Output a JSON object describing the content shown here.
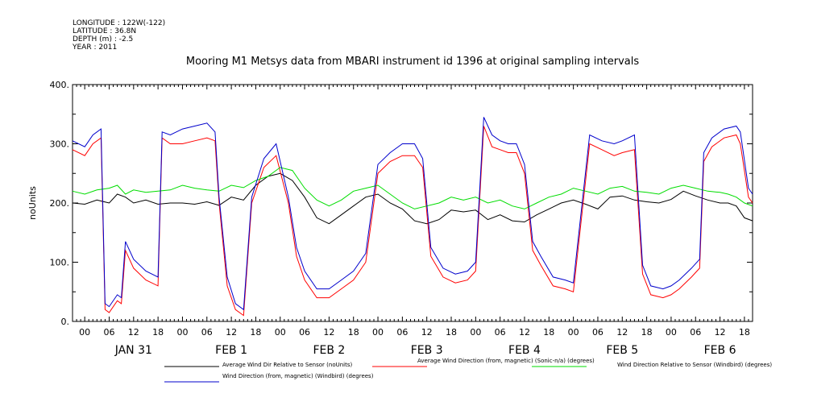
{
  "metadata": {
    "longitude": "LONGITUDE : 122W(-122)",
    "latitude": "LATITUDE : 36.8N",
    "depth": "DEPTH (m) : -2.5",
    "year": "YEAR : 2011"
  },
  "chart_data": {
    "type": "line",
    "title": "Mooring M1 Metsys data from MBARI instrument id 1396 at original sampling intervals",
    "ylabel": "noUnits",
    "xlabel": "",
    "ylim": [
      0,
      400
    ],
    "yticks": [
      "0.",
      "100.",
      "200.",
      "300.",
      "400."
    ],
    "hour_ticks": [
      "00",
      "06",
      "12",
      "18",
      "00",
      "06",
      "12",
      "18",
      "00",
      "06",
      "12",
      "18",
      "00",
      "06",
      "12",
      "18",
      "00",
      "06",
      "12",
      "18",
      "00",
      "06",
      "12",
      "18",
      "00",
      "06",
      "12",
      "18"
    ],
    "day_labels": [
      "JAN 31",
      "FEB 1",
      "FEB 2",
      "FEB 3",
      "FEB 4",
      "FEB 5",
      "FEB 6"
    ],
    "x_range_hours": [
      -3,
      164
    ],
    "grid": false,
    "legend_placement": "bottom",
    "series": [
      {
        "name": "Average Wind Dir Relative to Sensor (noUnits)",
        "color": "#000000",
        "points": [
          [
            -3,
            200
          ],
          [
            0,
            198
          ],
          [
            3,
            205
          ],
          [
            6,
            200
          ],
          [
            8,
            215
          ],
          [
            10,
            210
          ],
          [
            12,
            200
          ],
          [
            15,
            205
          ],
          [
            18,
            198
          ],
          [
            21,
            200
          ],
          [
            24,
            200
          ],
          [
            27,
            198
          ],
          [
            30,
            202
          ],
          [
            33,
            196
          ],
          [
            36,
            210
          ],
          [
            39,
            205
          ],
          [
            42,
            230
          ],
          [
            45,
            245
          ],
          [
            48,
            250
          ],
          [
            51,
            238
          ],
          [
            54,
            210
          ],
          [
            57,
            175
          ],
          [
            60,
            165
          ],
          [
            63,
            180
          ],
          [
            66,
            195
          ],
          [
            69,
            210
          ],
          [
            72,
            215
          ],
          [
            75,
            200
          ],
          [
            78,
            190
          ],
          [
            81,
            170
          ],
          [
            84,
            165
          ],
          [
            87,
            172
          ],
          [
            90,
            188
          ],
          [
            93,
            185
          ],
          [
            96,
            188
          ],
          [
            99,
            172
          ],
          [
            102,
            180
          ],
          [
            105,
            170
          ],
          [
            108,
            168
          ],
          [
            111,
            180
          ],
          [
            114,
            190
          ],
          [
            117,
            200
          ],
          [
            120,
            205
          ],
          [
            123,
            198
          ],
          [
            126,
            190
          ],
          [
            129,
            210
          ],
          [
            132,
            212
          ],
          [
            135,
            205
          ],
          [
            138,
            202
          ],
          [
            141,
            200
          ],
          [
            144,
            206
          ],
          [
            147,
            220
          ],
          [
            150,
            212
          ],
          [
            153,
            205
          ],
          [
            156,
            200
          ],
          [
            158,
            200
          ],
          [
            160,
            195
          ],
          [
            162,
            175
          ],
          [
            164,
            170
          ]
        ]
      },
      {
        "name": "Average Wind Direction (from, magnetic) (Sonic-n/a) (degrees)",
        "color": "#ff0000",
        "points": [
          [
            -3,
            290
          ],
          [
            0,
            280
          ],
          [
            2,
            300
          ],
          [
            4,
            310
          ],
          [
            5,
            20
          ],
          [
            6,
            15
          ],
          [
            8,
            35
          ],
          [
            9,
            30
          ],
          [
            10,
            120
          ],
          [
            12,
            90
          ],
          [
            15,
            70
          ],
          [
            18,
            60
          ],
          [
            19,
            310
          ],
          [
            21,
            300
          ],
          [
            24,
            300
          ],
          [
            27,
            305
          ],
          [
            30,
            310
          ],
          [
            32,
            305
          ],
          [
            33,
            200
          ],
          [
            35,
            60
          ],
          [
            37,
            20
          ],
          [
            39,
            10
          ],
          [
            41,
            200
          ],
          [
            44,
            260
          ],
          [
            47,
            280
          ],
          [
            50,
            200
          ],
          [
            52,
            110
          ],
          [
            54,
            70
          ],
          [
            57,
            40
          ],
          [
            60,
            40
          ],
          [
            63,
            55
          ],
          [
            66,
            70
          ],
          [
            69,
            100
          ],
          [
            72,
            250
          ],
          [
            75,
            270
          ],
          [
            78,
            280
          ],
          [
            81,
            280
          ],
          [
            83,
            260
          ],
          [
            85,
            110
          ],
          [
            88,
            75
          ],
          [
            91,
            65
          ],
          [
            94,
            70
          ],
          [
            96,
            85
          ],
          [
            98,
            330
          ],
          [
            100,
            295
          ],
          [
            102,
            290
          ],
          [
            104,
            285
          ],
          [
            106,
            285
          ],
          [
            108,
            250
          ],
          [
            110,
            120
          ],
          [
            112,
            95
          ],
          [
            115,
            60
          ],
          [
            118,
            55
          ],
          [
            120,
            50
          ],
          [
            124,
            300
          ],
          [
            127,
            290
          ],
          [
            130,
            280
          ],
          [
            132,
            285
          ],
          [
            135,
            290
          ],
          [
            137,
            80
          ],
          [
            139,
            45
          ],
          [
            142,
            40
          ],
          [
            144,
            45
          ],
          [
            146,
            55
          ],
          [
            149,
            75
          ],
          [
            151,
            90
          ],
          [
            152,
            270
          ],
          [
            154,
            295
          ],
          [
            157,
            310
          ],
          [
            160,
            315
          ],
          [
            161,
            300
          ],
          [
            163,
            210
          ],
          [
            164,
            200
          ]
        ]
      },
      {
        "name": "Wind Direction Relative to Sensor (Windbird) (degrees)",
        "color": "#00dd00",
        "points": [
          [
            -3,
            220
          ],
          [
            0,
            215
          ],
          [
            3,
            222
          ],
          [
            6,
            225
          ],
          [
            8,
            230
          ],
          [
            10,
            215
          ],
          [
            12,
            222
          ],
          [
            15,
            218
          ],
          [
            18,
            220
          ],
          [
            21,
            222
          ],
          [
            24,
            230
          ],
          [
            27,
            225
          ],
          [
            30,
            222
          ],
          [
            33,
            220
          ],
          [
            36,
            230
          ],
          [
            39,
            226
          ],
          [
            42,
            238
          ],
          [
            45,
            245
          ],
          [
            48,
            260
          ],
          [
            51,
            255
          ],
          [
            54,
            225
          ],
          [
            57,
            205
          ],
          [
            60,
            195
          ],
          [
            63,
            205
          ],
          [
            66,
            220
          ],
          [
            69,
            225
          ],
          [
            72,
            230
          ],
          [
            75,
            215
          ],
          [
            78,
            200
          ],
          [
            81,
            190
          ],
          [
            84,
            195
          ],
          [
            87,
            200
          ],
          [
            90,
            210
          ],
          [
            93,
            205
          ],
          [
            96,
            210
          ],
          [
            99,
            200
          ],
          [
            102,
            205
          ],
          [
            105,
            195
          ],
          [
            108,
            190
          ],
          [
            111,
            200
          ],
          [
            114,
            210
          ],
          [
            117,
            215
          ],
          [
            120,
            225
          ],
          [
            123,
            220
          ],
          [
            126,
            215
          ],
          [
            129,
            225
          ],
          [
            132,
            228
          ],
          [
            135,
            220
          ],
          [
            138,
            218
          ],
          [
            141,
            215
          ],
          [
            144,
            225
          ],
          [
            147,
            230
          ],
          [
            150,
            225
          ],
          [
            153,
            220
          ],
          [
            156,
            218
          ],
          [
            158,
            215
          ],
          [
            160,
            210
          ],
          [
            162,
            200
          ],
          [
            164,
            195
          ]
        ]
      },
      {
        "name": "Wind Direction (from, magnetic) (Windbird) (degrees)",
        "color": "#0000cc",
        "points": [
          [
            -3,
            305
          ],
          [
            0,
            295
          ],
          [
            2,
            315
          ],
          [
            4,
            325
          ],
          [
            5,
            30
          ],
          [
            6,
            25
          ],
          [
            8,
            45
          ],
          [
            9,
            40
          ],
          [
            10,
            135
          ],
          [
            12,
            105
          ],
          [
            15,
            85
          ],
          [
            18,
            75
          ],
          [
            19,
            320
          ],
          [
            21,
            315
          ],
          [
            24,
            325
          ],
          [
            27,
            330
          ],
          [
            30,
            335
          ],
          [
            32,
            320
          ],
          [
            33,
            210
          ],
          [
            35,
            75
          ],
          [
            37,
            30
          ],
          [
            39,
            20
          ],
          [
            41,
            210
          ],
          [
            44,
            275
          ],
          [
            47,
            300
          ],
          [
            50,
            210
          ],
          [
            52,
            125
          ],
          [
            54,
            85
          ],
          [
            57,
            55
          ],
          [
            60,
            55
          ],
          [
            63,
            70
          ],
          [
            66,
            85
          ],
          [
            69,
            115
          ],
          [
            72,
            265
          ],
          [
            75,
            285
          ],
          [
            78,
            300
          ],
          [
            81,
            300
          ],
          [
            83,
            275
          ],
          [
            85,
            125
          ],
          [
            88,
            90
          ],
          [
            91,
            80
          ],
          [
            94,
            85
          ],
          [
            96,
            100
          ],
          [
            98,
            345
          ],
          [
            100,
            315
          ],
          [
            102,
            305
          ],
          [
            104,
            300
          ],
          [
            106,
            300
          ],
          [
            108,
            265
          ],
          [
            110,
            135
          ],
          [
            112,
            110
          ],
          [
            115,
            75
          ],
          [
            118,
            70
          ],
          [
            120,
            65
          ],
          [
            124,
            315
          ],
          [
            127,
            305
          ],
          [
            130,
            300
          ],
          [
            132,
            305
          ],
          [
            135,
            315
          ],
          [
            137,
            95
          ],
          [
            139,
            60
          ],
          [
            142,
            55
          ],
          [
            144,
            60
          ],
          [
            146,
            70
          ],
          [
            149,
            90
          ],
          [
            151,
            105
          ],
          [
            152,
            285
          ],
          [
            154,
            310
          ],
          [
            157,
            325
          ],
          [
            160,
            330
          ],
          [
            161,
            320
          ],
          [
            163,
            225
          ],
          [
            164,
            215
          ]
        ]
      }
    ]
  }
}
